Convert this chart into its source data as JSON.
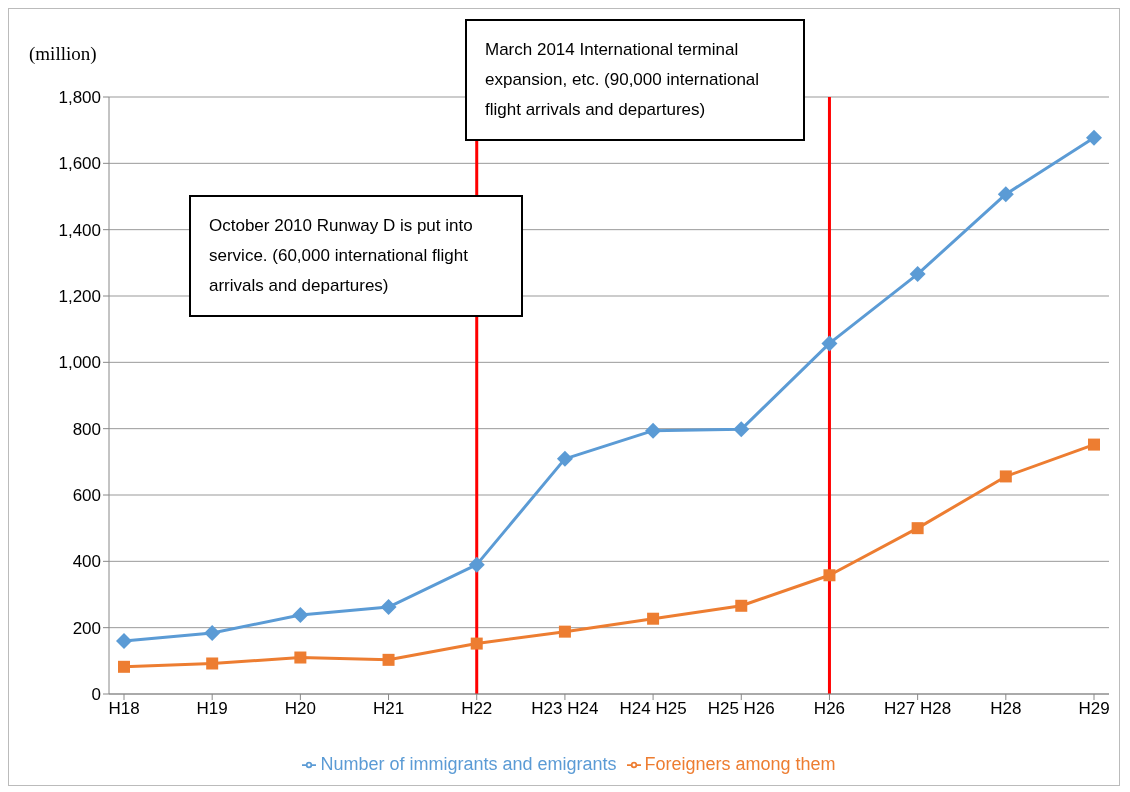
{
  "chart_data": {
    "type": "line",
    "ylabel": "(million)",
    "categories": [
      "H18",
      "H19",
      "H20",
      "H21",
      "H22",
      "H23 H24",
      "H24 H25",
      "H25 H26",
      "H26",
      "H27 H28",
      "H28",
      "H29"
    ],
    "series": [
      {
        "name": "Number of immigrants and emigrants",
        "color": "#5b9bd5",
        "marker": "diamond",
        "values": [
          160,
          184,
          238,
          262,
          390,
          709,
          794,
          798,
          1057,
          1266,
          1507,
          1677
        ]
      },
      {
        "name": "Foreigners among them",
        "color": "#ed7d31",
        "marker": "square",
        "values": [
          82,
          92,
          110,
          103,
          152,
          188,
          227,
          266,
          358,
          500,
          656,
          752
        ]
      }
    ],
    "ylim": [
      0,
      1800
    ],
    "yticks": [
      0,
      200,
      400,
      600,
      800,
      {
        "value": 1000,
        "label": "1,000"
      },
      {
        "value": 1200,
        "label": "1,200"
      },
      {
        "value": 1400,
        "label": "1,400"
      },
      {
        "value": 1600,
        "label": "1,600"
      },
      {
        "value": 1800,
        "label": "1,800"
      }
    ],
    "grid": "y",
    "legend": "bottom",
    "ref_lines": [
      {
        "axis": "x",
        "value": "H22",
        "color": "#ff0000"
      },
      {
        "axis": "x",
        "value": "H26",
        "color": "#ff0000"
      }
    ],
    "annotations": [
      "October 2010 Runway D is put into service. (60,000 international flight arrivals and departures)",
      "March 2014 International terminal expansion, etc. (90,000 international flight arrivals and departures)"
    ]
  }
}
